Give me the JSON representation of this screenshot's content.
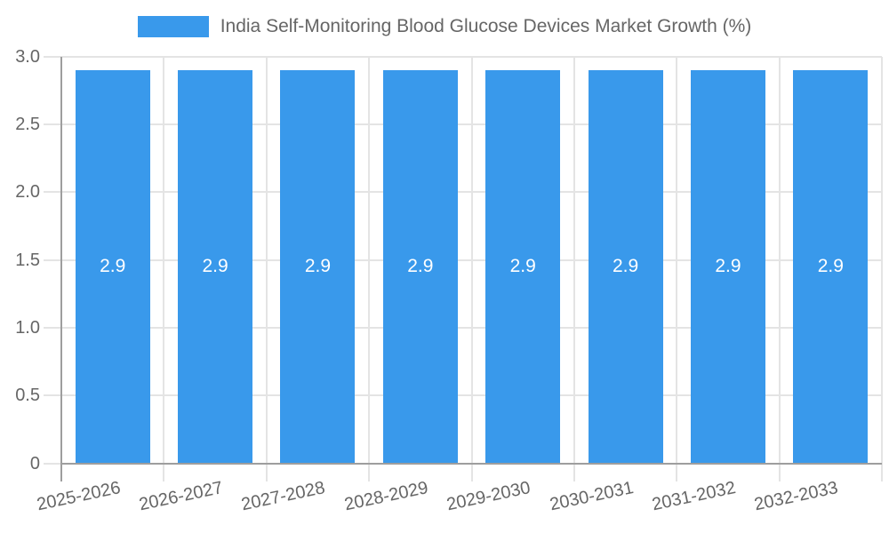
{
  "chart_data": {
    "type": "bar",
    "title": "India Self-Monitoring Blood Glucose Devices Market Growth (%)",
    "legend_position": "top",
    "categories": [
      "2025-2026",
      "2026-2027",
      "2027-2028",
      "2028-2029",
      "2029-2030",
      "2030-2031",
      "2031-2032",
      "2032-2033"
    ],
    "values": [
      2.9,
      2.9,
      2.9,
      2.9,
      2.9,
      2.9,
      2.9,
      2.9
    ],
    "value_labels": [
      "2.9",
      "2.9",
      "2.9",
      "2.9",
      "2.9",
      "2.9",
      "2.9",
      "2.9"
    ],
    "xlabel": "",
    "ylabel": "",
    "ylim": [
      0,
      3
    ],
    "ytick_labels": [
      "0",
      "0.5",
      "1.0",
      "1.5",
      "2.0",
      "2.5",
      "3.0"
    ],
    "grid": true,
    "colors": {
      "bar": "#3999EB",
      "value_label": "#FFFFFF",
      "title_text": "#666666",
      "axis_text": "#666666",
      "gridline": "#E4E4E4",
      "axis_line": "#9E9E9E"
    }
  }
}
